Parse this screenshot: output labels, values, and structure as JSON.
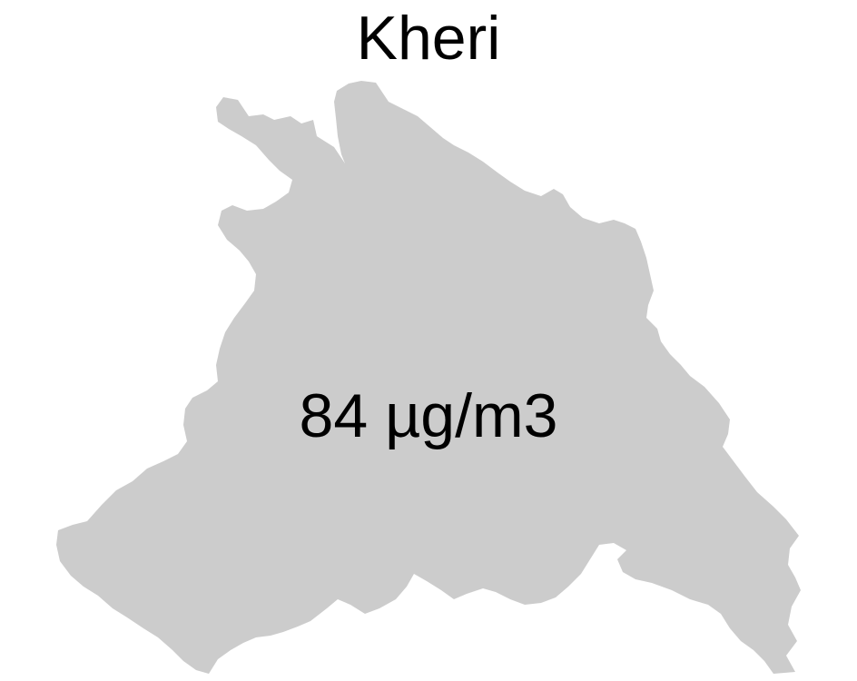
{
  "map": {
    "title": "Kheri",
    "region_value_label": "84 µg/m3",
    "region_fill_color": "#cccccc"
  }
}
